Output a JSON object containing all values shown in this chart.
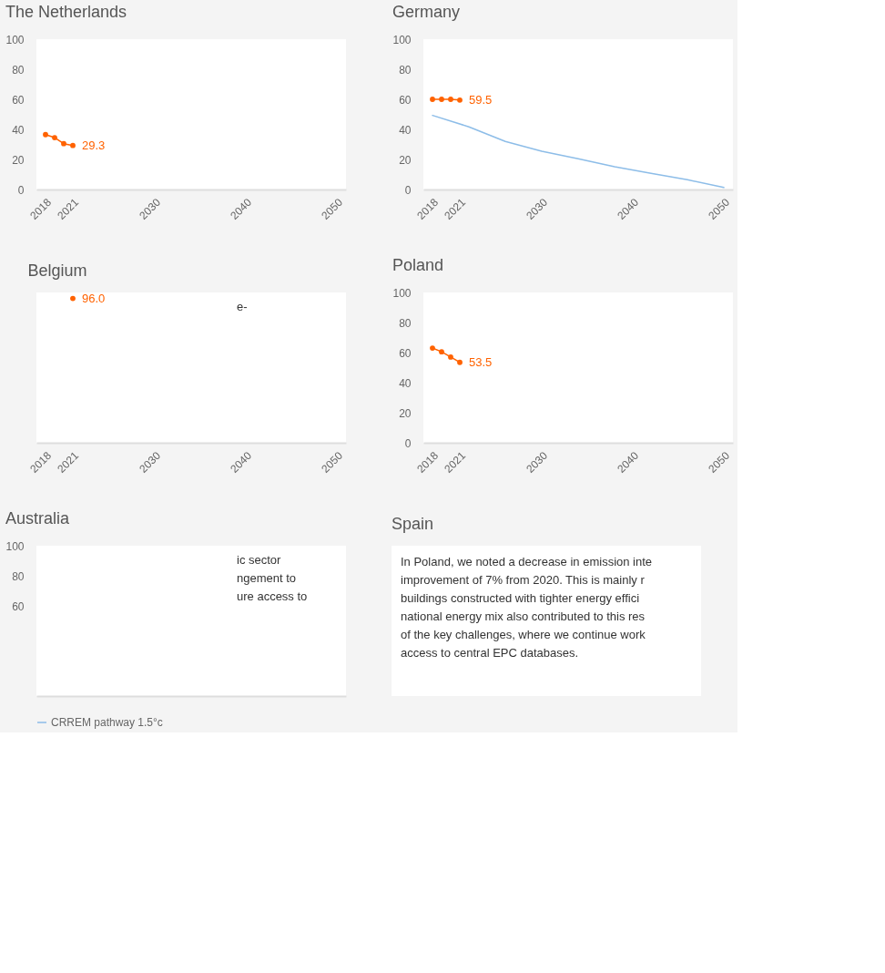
{
  "chart_data": [
    {
      "type": "line",
      "title": "The Netherlands",
      "xlim": [
        2017,
        2051
      ],
      "xticks": [
        2018,
        2021,
        2030,
        2040,
        2050
      ],
      "ylim": [
        0,
        100
      ],
      "yticks": [
        0,
        20,
        40,
        60,
        80,
        100
      ],
      "series": [
        {
          "color": "#ff6200",
          "marker": "circle",
          "x": [
            2018,
            2019,
            2020,
            2021
          ],
          "values": [
            36.5,
            34.5,
            30.5,
            29.3
          ],
          "value_labels": [
            null,
            null,
            null,
            "29.3"
          ]
        }
      ]
    },
    {
      "type": "line",
      "title": "Germany",
      "xlim": [
        2017,
        2051
      ],
      "xticks": [
        2018,
        2021,
        2030,
        2040,
        2050
      ],
      "ylim": [
        0,
        100
      ],
      "yticks": [
        0,
        20,
        40,
        60,
        80,
        100
      ],
      "legend": "bottom",
      "series": [
        {
          "color": "#ff6200",
          "marker": "circle",
          "x": [
            2018,
            2019,
            2020,
            2021
          ],
          "values": [
            60,
            60,
            60,
            59.5
          ],
          "value_labels": [
            null,
            null,
            null,
            "59.5"
          ]
        },
        {
          "name": "CRREM pathway 1.5°c",
          "color": "#8dbde8",
          "marker": "none",
          "x": [
            2018,
            2022,
            2026,
            2030,
            2034,
            2038,
            2042,
            2046,
            2050
          ],
          "values": [
            49.3,
            41.7,
            32,
            25.4,
            20.4,
            15.2,
            10.7,
            6.5,
            1.3
          ]
        }
      ]
    },
    {
      "type": "line",
      "title": "Belgium",
      "xlim": [
        2017,
        2051
      ],
      "xticks": [
        2018,
        2021,
        2030,
        2040,
        2050
      ],
      "ylim": [
        0,
        100
      ],
      "tick_labels": "x",
      "annotations": [
        "e-"
      ],
      "series": [
        {
          "color": "#ff6200",
          "marker": "circle",
          "x": [
            2021
          ],
          "values": [
            96.0
          ],
          "value_labels": [
            "96.0"
          ]
        }
      ]
    },
    {
      "type": "line",
      "title": "Poland",
      "xlim": [
        2017,
        2051
      ],
      "xticks": [
        2018,
        2021,
        2030,
        2040,
        2050
      ],
      "ylim": [
        0,
        100
      ],
      "yticks": [
        0,
        20,
        40,
        60,
        80,
        100
      ],
      "series": [
        {
          "color": "#ff6200",
          "marker": "circle",
          "x": [
            2018,
            2019,
            2020,
            2021
          ],
          "values": [
            63,
            60.5,
            57,
            53.5
          ],
          "value_labels": [
            null,
            null,
            null,
            "53.5"
          ]
        }
      ]
    },
    {
      "type": "line",
      "title": "Australia",
      "xlim": [
        2017,
        2051
      ],
      "ylim": [
        0,
        100
      ],
      "yticks": [
        60,
        80,
        100
      ],
      "tick_labels": "y",
      "annotations": [
        "ic sector",
        "ngement to",
        "ure access to"
      ]
    },
    {
      "type": "other",
      "title": "Spain",
      "annotations": [
        "In Poland, we noted a decrease in emission inte",
        "improvement of 7% from 2020. This is mainly r",
        "buildings constructed with tighter energy effici",
        "national energy mix also contributed to this res",
        "of the key challenges, where we continue work",
        "access to central EPC databases."
      ]
    }
  ]
}
